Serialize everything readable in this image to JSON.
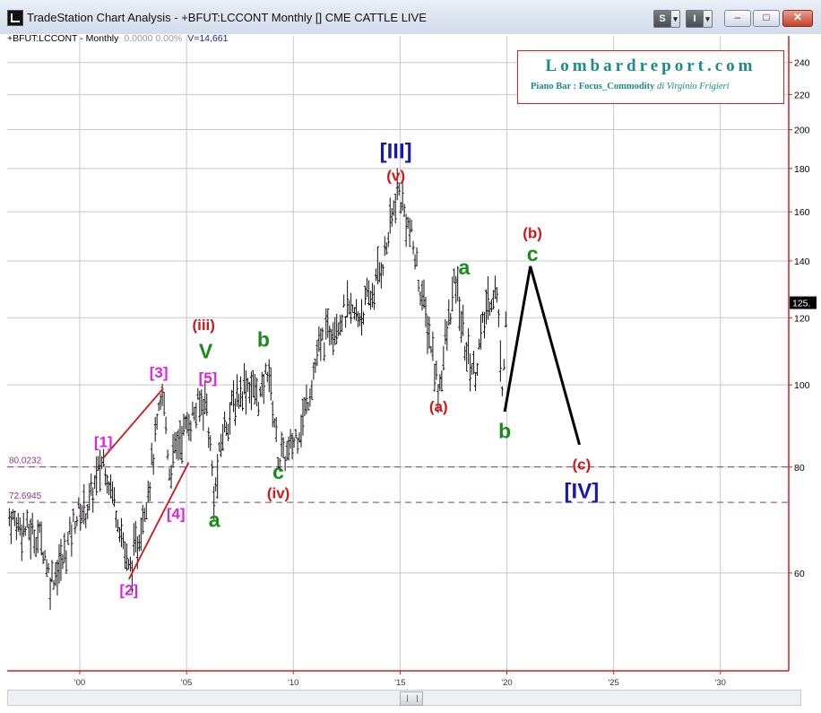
{
  "window": {
    "title": "TradeStation Chart Analysis - +BFUT:LCCONT Monthly [] CME CATTLE LIVE",
    "btn_s": "S",
    "btn_i": "I",
    "btn_arrow": "▾",
    "minimize": "–",
    "maximize": "□",
    "close": "✕"
  },
  "header": {
    "symbol": "+BFUT:LCCONT - Monthly",
    "values": "0.0000  0.00%",
    "volume": "V=14,661"
  },
  "brand": {
    "name": "Lombardreport.com",
    "subtitle": "Piano Bar : Focus_Commodity",
    "author": "di Virginio Frigieri"
  },
  "colors": {
    "price_axis": "#cc2020",
    "magenta": "#e020e0",
    "green": "#1a8a1a",
    "red": "#d01818",
    "blue": "#1818b0",
    "dashed": "#8a3a8a"
  },
  "chart_data": {
    "type": "bar",
    "instrument": "CME CATTLE LIVE",
    "interval": "Monthly",
    "x_ticks": [
      "'00",
      "'05",
      "'10",
      "'15",
      "'20",
      "'25",
      "'30"
    ],
    "x_years": [
      2000,
      2005,
      2010,
      2015,
      2020,
      2025,
      2030
    ],
    "xlim": [
      1996.6,
      2033.2
    ],
    "y_ticks": [
      60,
      80,
      100,
      120,
      140,
      160,
      180,
      200,
      220,
      240
    ],
    "y_scale": "log",
    "ylim": [
      46,
      258
    ],
    "last_price_label": "125.",
    "last_price": 125,
    "levels": [
      {
        "label": "80.0232",
        "value": 80.0232
      },
      {
        "label": "72.6945",
        "value": 72.6945
      }
    ],
    "price_path": [
      [
        1996.7,
        70
      ],
      [
        1997.3,
        68
      ],
      [
        1998.2,
        66
      ],
      [
        1998.6,
        59
      ],
      [
        1999.2,
        62
      ],
      [
        1999.8,
        70
      ],
      [
        2000.4,
        72
      ],
      [
        2001.1,
        82
      ],
      [
        2001.8,
        70
      ],
      [
        2002.3,
        60
      ],
      [
        2002.7,
        65
      ],
      [
        2003.3,
        78
      ],
      [
        2003.9,
        98
      ],
      [
        2004.2,
        79
      ],
      [
        2004.6,
        86
      ],
      [
        2005.3,
        92
      ],
      [
        2005.9,
        97
      ],
      [
        2006.3,
        73
      ],
      [
        2006.7,
        88
      ],
      [
        2007.2,
        95
      ],
      [
        2007.8,
        101
      ],
      [
        2008.5,
        96
      ],
      [
        2008.8,
        106
      ],
      [
        2009.3,
        82
      ],
      [
        2009.8,
        83
      ],
      [
        2010.5,
        92
      ],
      [
        2011.2,
        110
      ],
      [
        2011.8,
        118
      ],
      [
        2012.5,
        122
      ],
      [
        2013.0,
        120
      ],
      [
        2013.7,
        128
      ],
      [
        2014.3,
        143
      ],
      [
        2014.9,
        170
      ],
      [
        2015.5,
        150
      ],
      [
        2016.0,
        128
      ],
      [
        2016.5,
        110
      ],
      [
        2016.8,
        98
      ],
      [
        2017.2,
        115
      ],
      [
        2017.6,
        133
      ],
      [
        2018.0,
        112
      ],
      [
        2018.5,
        103
      ],
      [
        2019.1,
        125
      ],
      [
        2019.5,
        130
      ],
      [
        2019.8,
        99
      ],
      [
        2020.0,
        127
      ]
    ],
    "projection": [
      [
        2019.9,
        93
      ],
      [
        2021.1,
        138
      ],
      [
        2023.4,
        85
      ]
    ],
    "red_lines": [
      [
        [
          2001.1,
          82
        ],
        [
          2003.9,
          99
        ]
      ],
      [
        [
          2002.3,
          59
        ],
        [
          2005.1,
          81
        ]
      ]
    ],
    "labels": [
      {
        "text": "[1]",
        "x": 2001.1,
        "y": 84.5,
        "color": "magenta"
      },
      {
        "text": "[2]",
        "x": 2002.3,
        "y": 56.5,
        "color": "magenta"
      },
      {
        "text": "[3]",
        "x": 2003.7,
        "y": 102,
        "color": "magenta"
      },
      {
        "text": "[4]",
        "x": 2004.5,
        "y": 69.5,
        "color": "magenta"
      },
      {
        "text": "[5]",
        "x": 2006.0,
        "y": 100.5,
        "color": "magenta"
      },
      {
        "text": "V",
        "x": 2005.9,
        "y": 107.5,
        "color": "green"
      },
      {
        "text": "(iii)",
        "x": 2005.8,
        "y": 116,
        "color": "red"
      },
      {
        "text": "a",
        "x": 2006.3,
        "y": 68,
        "color": "green"
      },
      {
        "text": "b",
        "x": 2008.6,
        "y": 111,
        "color": "green"
      },
      {
        "text": "c",
        "x": 2009.3,
        "y": 77.5,
        "color": "green"
      },
      {
        "text": "(iv)",
        "x": 2009.3,
        "y": 73.5,
        "color": "red"
      },
      {
        "text": "[III]",
        "x": 2014.8,
        "y": 185,
        "color": "blue"
      },
      {
        "text": "(v)",
        "x": 2014.8,
        "y": 174,
        "color": "red"
      },
      {
        "text": "a",
        "x": 2018.0,
        "y": 135,
        "color": "green"
      },
      {
        "text": "(a)",
        "x": 2016.8,
        "y": 93,
        "color": "red"
      },
      {
        "text": "b",
        "x": 2019.9,
        "y": 86.5,
        "color": "green"
      },
      {
        "text": "(b)",
        "x": 2021.2,
        "y": 149,
        "color": "red"
      },
      {
        "text": "c",
        "x": 2021.2,
        "y": 140,
        "color": "green"
      },
      {
        "text": "(c)",
        "x": 2023.5,
        "y": 79.5,
        "color": "red"
      },
      {
        "text": "[IV]",
        "x": 2023.5,
        "y": 73.5,
        "color": "blue"
      }
    ]
  }
}
